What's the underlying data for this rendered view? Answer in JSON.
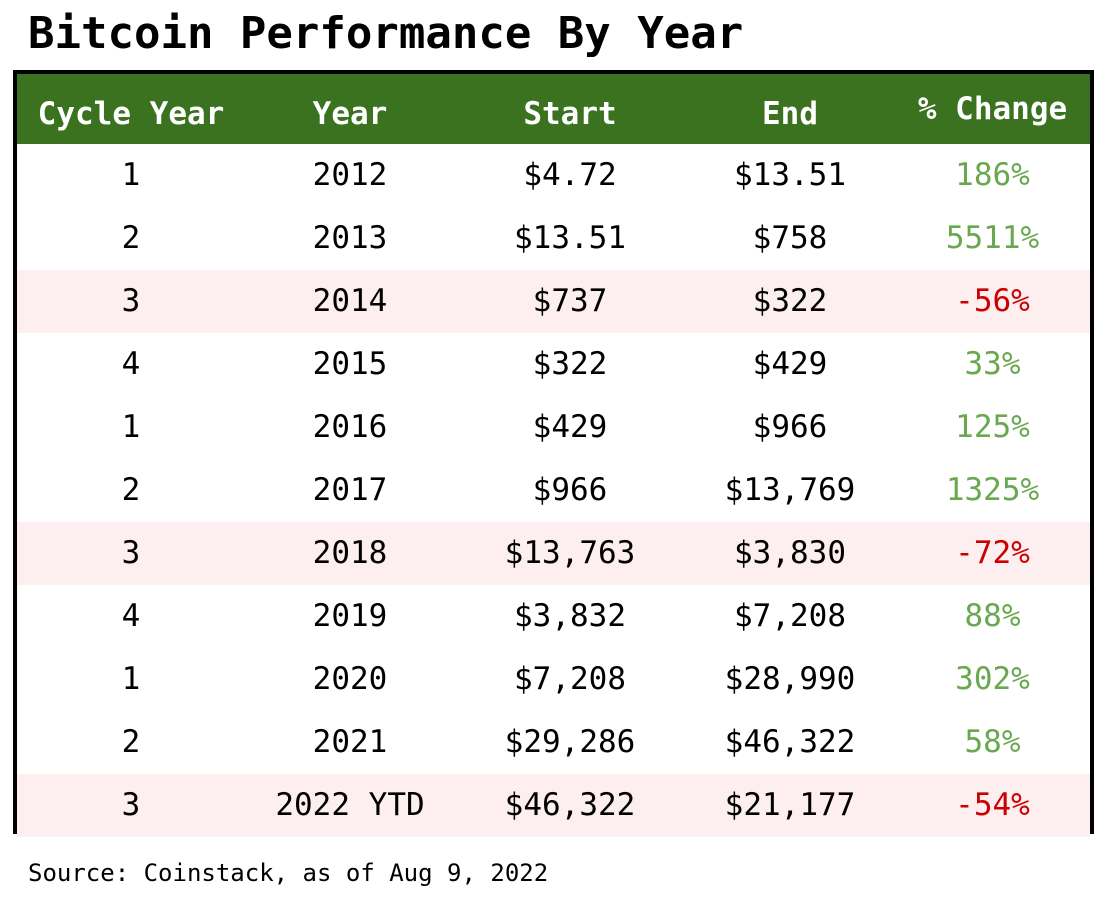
{
  "title": "Bitcoin Performance By Year",
  "source": "Source: Coinstack, as of Aug 9, 2022",
  "colors": {
    "header_bg": "#3a7220",
    "header_text": "#ffffff",
    "negative_row_bg": "#fdeef0",
    "positive_pct": "#6aa84f",
    "negative_pct": "#cc0000",
    "border": "#000000"
  },
  "chart_data": {
    "type": "table",
    "title": "Bitcoin Performance By Year",
    "columns": [
      "Cycle Year",
      "Year",
      "Start",
      "End",
      "% Change"
    ],
    "rows": [
      {
        "cycle": "1",
        "year": "2012",
        "start": "$4.72",
        "end": "$13.51",
        "change": "186%",
        "negative": false
      },
      {
        "cycle": "2",
        "year": "2013",
        "start": "$13.51",
        "end": "$758",
        "change": "5511%",
        "negative": false
      },
      {
        "cycle": "3",
        "year": "2014",
        "start": "$737",
        "end": "$322",
        "change": "-56%",
        "negative": true
      },
      {
        "cycle": "4",
        "year": "2015",
        "start": "$322",
        "end": "$429",
        "change": "33%",
        "negative": false
      },
      {
        "cycle": "1",
        "year": "2016",
        "start": "$429",
        "end": "$966",
        "change": "125%",
        "negative": false
      },
      {
        "cycle": "2",
        "year": "2017",
        "start": "$966",
        "end": "$13,769",
        "change": "1325%",
        "negative": false
      },
      {
        "cycle": "3",
        "year": "2018",
        "start": "$13,763",
        "end": "$3,830",
        "change": "-72%",
        "negative": true
      },
      {
        "cycle": "4",
        "year": "2019",
        "start": "$3,832",
        "end": "$7,208",
        "change": "88%",
        "negative": false
      },
      {
        "cycle": "1",
        "year": "2020",
        "start": "$7,208",
        "end": "$28,990",
        "change": "302%",
        "negative": false
      },
      {
        "cycle": "2",
        "year": "2021",
        "start": "$29,286",
        "end": "$46,322",
        "change": "58%",
        "negative": false
      },
      {
        "cycle": "3",
        "year": "2022 YTD",
        "start": "$46,322",
        "end": "$21,177",
        "change": "-54%",
        "negative": true
      }
    ]
  }
}
